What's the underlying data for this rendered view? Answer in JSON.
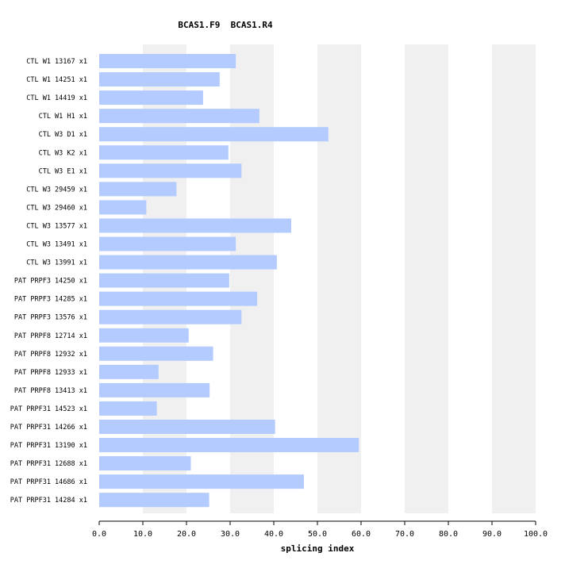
{
  "chart_data": {
    "type": "bar",
    "orientation": "horizontal",
    "title": "BCAS1.F9  BCAS1.R4",
    "xlabel": "splicing index",
    "ylabel": "",
    "xlim": [
      0,
      100
    ],
    "x_ticks": [
      "0.0",
      "10.0",
      "20.0",
      "30.0",
      "40.0",
      "50.0",
      "60.0",
      "70.0",
      "80.0",
      "90.0",
      "100.0"
    ],
    "grid": "alternating vertical bands",
    "bar_color": "#b3cbff",
    "band_color": "#f0f0f0",
    "categories": [
      "CTL W1 13167 x1",
      "CTL W1 14251 x1",
      "CTL W1 14419 x1",
      "CTL W1 H1 x1",
      "CTL W3 D1 x1",
      "CTL W3 K2 x1",
      "CTL W3 E1 x1",
      "CTL W3 29459 x1",
      "CTL W3 29460 x1",
      "CTL W3 13577 x1",
      "CTL W3 13491 x1",
      "CTL W3 13991 x1",
      "PAT PRPF3 14250 x1",
      "PAT PRPF3 14285 x1",
      "PAT PRPF3 13576 x1",
      "PAT PRPF8 12714 x1",
      "PAT PRPF8 12932 x1",
      "PAT PRPF8 12933 x1",
      "PAT PRPF8 13413 x1",
      "PAT PRPF31 14523 x1",
      "PAT PRPF31 14266 x1",
      "PAT PRPF31 13190 x1",
      "PAT PRPF31 12688 x1",
      "PAT PRPF31 14686 x1",
      "PAT PRPF31 14284 x1"
    ],
    "values": [
      31.3,
      27.6,
      23.8,
      36.7,
      52.5,
      29.6,
      32.6,
      17.7,
      10.8,
      44.0,
      31.3,
      40.7,
      29.8,
      36.2,
      32.6,
      20.5,
      26.1,
      13.6,
      25.3,
      13.2,
      40.3,
      59.5,
      21.0,
      46.9,
      25.2
    ]
  }
}
